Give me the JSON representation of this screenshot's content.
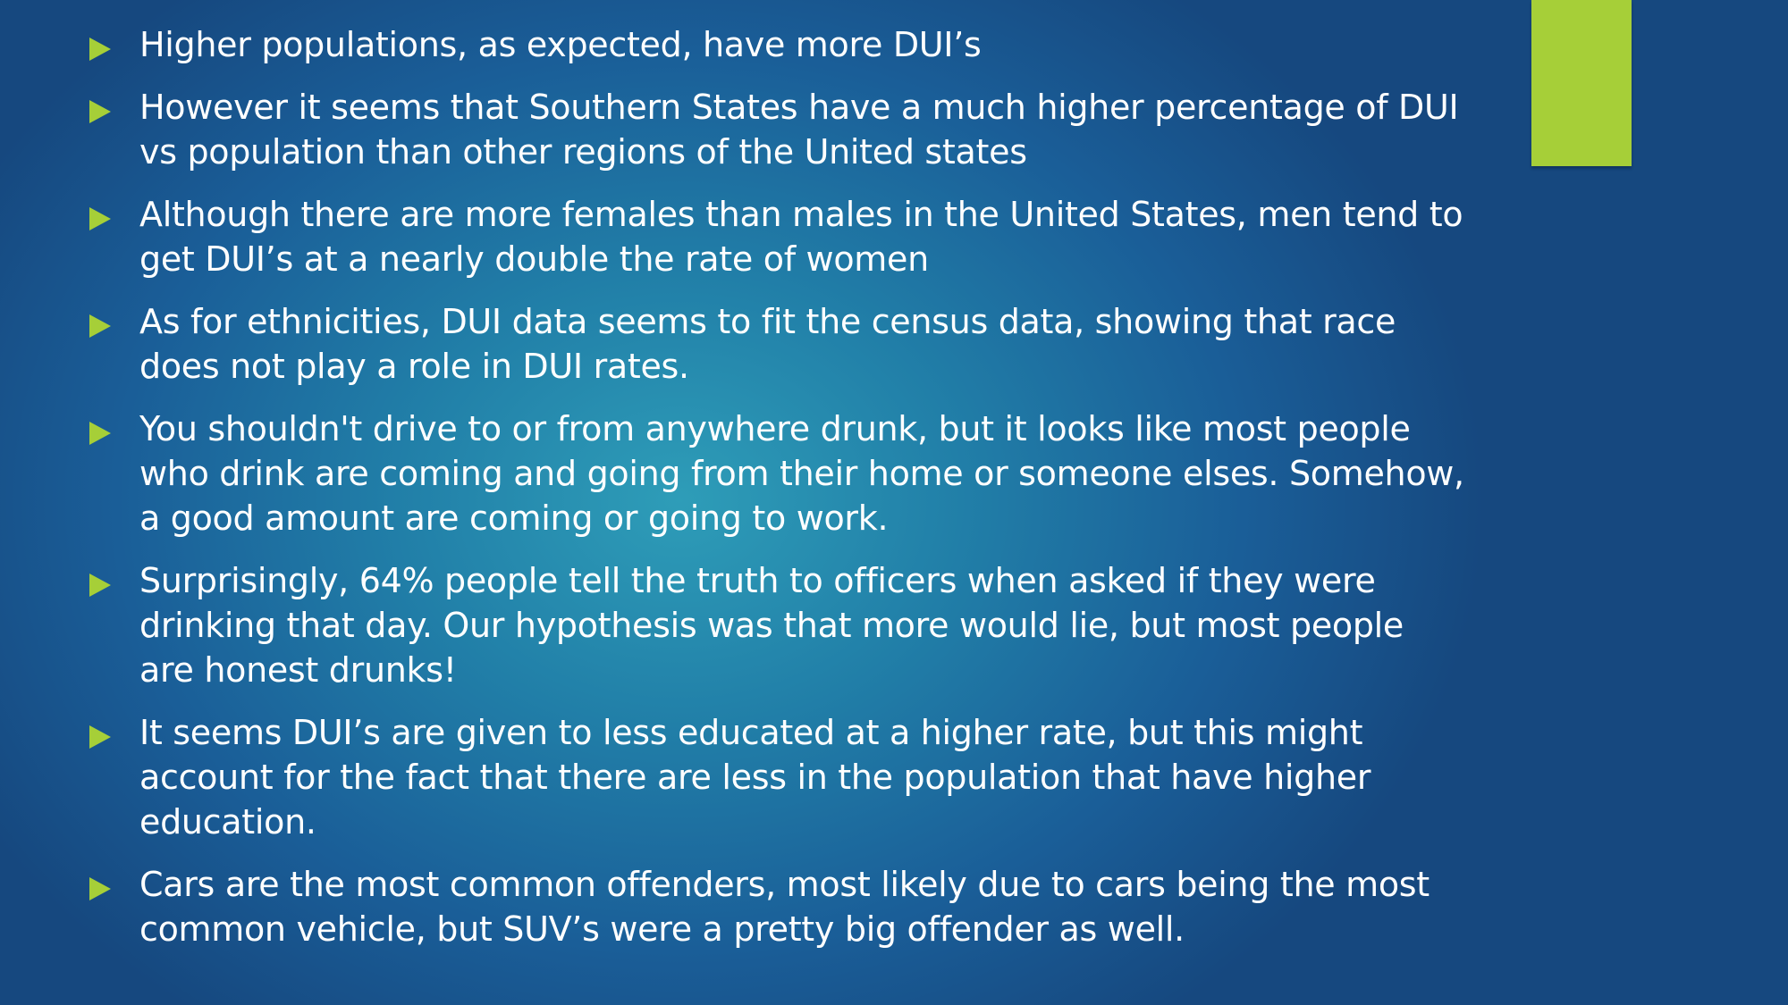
{
  "colors": {
    "accent": "#a6cf38",
    "text": "#ffffff",
    "background_center": "#2e9db8",
    "background_edge": "#16487f"
  },
  "bullet_icon": "triangle-right-icon",
  "bullets": [
    "Higher populations, as expected, have more DUI’s",
    "However it seems that Southern States have a much higher percentage of DUI vs population than other regions of the United states",
    "Although there are more females than males in the United States, men tend to get DUI’s at a nearly double the rate of women",
    "As for ethnicities, DUI data seems to fit the census data, showing that race does not play a role in DUI rates.",
    "You shouldn't drive to or from anywhere drunk, but it looks like most people who drink are coming and going from their home or someone elses. Somehow, a good amount are coming or going to work.",
    "Surprisingly, 64% people tell the truth to officers when asked if they were drinking that day. Our hypothesis was that more would lie, but most people are honest drunks!",
    "It seems DUI’s are given to less educated at a higher rate, but this might account for the fact that there are less in the population that have higher education.",
    "Cars are the most common offenders, most likely due to cars being the most common vehicle, but SUV’s were a pretty big offender as well."
  ]
}
